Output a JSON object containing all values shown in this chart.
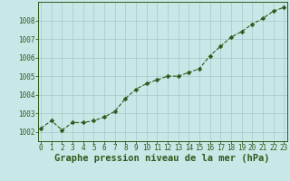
{
  "x": [
    0,
    1,
    2,
    3,
    4,
    5,
    6,
    7,
    8,
    9,
    10,
    11,
    12,
    13,
    14,
    15,
    16,
    17,
    18,
    19,
    20,
    21,
    22,
    23
  ],
  "y": [
    1002.2,
    1002.6,
    1002.1,
    1002.5,
    1002.5,
    1002.6,
    1002.8,
    1003.1,
    1003.8,
    1004.3,
    1004.6,
    1004.8,
    1005.0,
    1005.0,
    1005.2,
    1005.4,
    1006.1,
    1006.6,
    1007.1,
    1007.4,
    1007.8,
    1008.1,
    1008.5,
    1008.7
  ],
  "line_color": "#2d5a1b",
  "marker": "D",
  "marker_size": 2.5,
  "bg_color": "#c8e8e8",
  "grid_color": "#a8cece",
  "xlabel": "Graphe pression niveau de la mer (hPa)",
  "xlabel_color": "#2d5a1b",
  "tick_color": "#2d5a1b",
  "ylim": [
    1001.5,
    1009.0
  ],
  "yticks": [
    1002,
    1003,
    1004,
    1005,
    1006,
    1007,
    1008
  ],
  "xticks": [
    0,
    1,
    2,
    3,
    4,
    5,
    6,
    7,
    8,
    9,
    10,
    11,
    12,
    13,
    14,
    15,
    16,
    17,
    18,
    19,
    20,
    21,
    22,
    23
  ],
  "xlim": [
    -0.3,
    23.3
  ],
  "tick_fontsize": 5.5,
  "xlabel_fontsize": 7.5
}
